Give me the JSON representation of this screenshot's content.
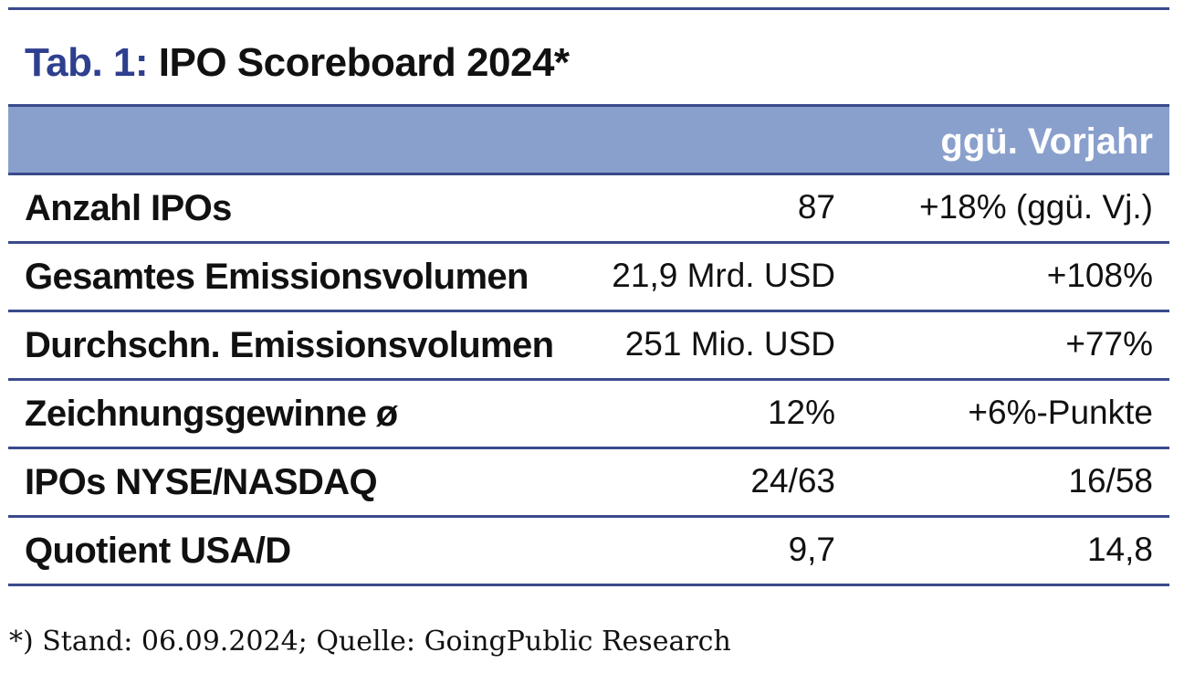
{
  "title": {
    "prefix": "Tab. 1:",
    "main": "IPO Scoreboard 2024*"
  },
  "header": {
    "comparison_label": "ggü. Vorjahr"
  },
  "rows": [
    {
      "label": "Anzahl IPOs",
      "value": "87",
      "change": "+18% (ggü. Vj.)"
    },
    {
      "label": "Gesamtes Emissionsvolumen",
      "value": "21,9 Mrd. USD",
      "change": "+108%"
    },
    {
      "label": "Durchschn. Emissionsvolumen",
      "value": "251 Mio. USD",
      "change": "+77%"
    },
    {
      "label": "Zeichnungsgewinne ø",
      "value": "12%",
      "change": "+6%-Punkte"
    },
    {
      "label": "IPOs NYSE/NASDAQ",
      "value": "24/63",
      "change": "16/58"
    },
    {
      "label": "Quotient USA/D",
      "value": "9,7",
      "change": "14,8"
    }
  ],
  "footnote": "*) Stand: 06.09.2024; Quelle: GoingPublic Research",
  "colors": {
    "accent": "#2e3f8f",
    "header_band": "#8aa0cc",
    "rule": "#3a4a8c"
  }
}
